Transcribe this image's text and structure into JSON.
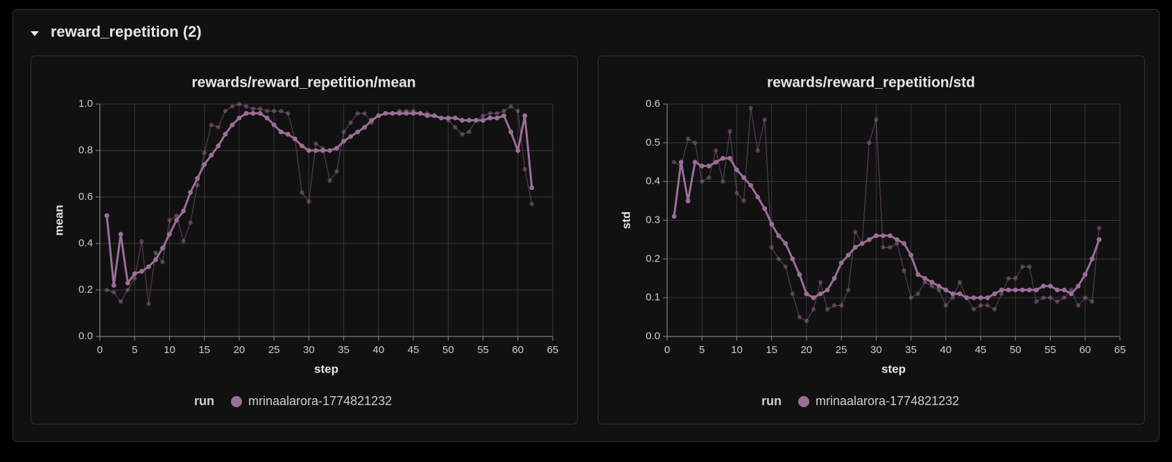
{
  "section": {
    "title": "reward_repetition (2)"
  },
  "chart_data": [
    {
      "type": "line",
      "title": "rewards/reward_repetition/mean",
      "xlabel": "step",
      "ylabel": "mean",
      "legend_title": "run",
      "grid": true,
      "xlim": [
        0,
        65
      ],
      "xticks": [
        0,
        5,
        10,
        15,
        20,
        25,
        30,
        35,
        40,
        45,
        50,
        55,
        60,
        65
      ],
      "ylim": [
        0,
        1
      ],
      "yticks": [
        {
          "value": 0,
          "label": "0.0"
        },
        0.2,
        0.4,
        0.6,
        0.8,
        {
          "value": 1,
          "label": "1.0"
        }
      ],
      "x": [
        1,
        2,
        3,
        4,
        5,
        6,
        7,
        8,
        9,
        10,
        11,
        12,
        13,
        14,
        15,
        16,
        17,
        18,
        19,
        20,
        21,
        22,
        23,
        24,
        25,
        26,
        27,
        28,
        29,
        30,
        31,
        32,
        33,
        34,
        35,
        36,
        37,
        38,
        39,
        40,
        41,
        42,
        43,
        44,
        45,
        46,
        47,
        48,
        49,
        50,
        51,
        52,
        53,
        54,
        55,
        56,
        57,
        58,
        59,
        60,
        61,
        62
      ],
      "series": [
        {
          "name": "mrinaalarora-1774821232",
          "color": "#9b6f98",
          "values": [
            0.2,
            0.19,
            0.15,
            0.2,
            0.25,
            0.41,
            0.14,
            0.36,
            0.32,
            0.5,
            0.52,
            0.41,
            0.49,
            0.65,
            0.79,
            0.91,
            0.9,
            0.97,
            0.99,
            1.0,
            0.99,
            0.98,
            0.98,
            0.97,
            0.97,
            0.97,
            0.96,
            0.85,
            0.62,
            0.58,
            0.83,
            0.81,
            0.67,
            0.71,
            0.88,
            0.92,
            0.96,
            0.96,
            0.92,
            0.95,
            0.96,
            0.96,
            0.97,
            0.97,
            0.97,
            0.96,
            0.96,
            0.95,
            0.94,
            0.93,
            0.9,
            0.87,
            0.88,
            0.93,
            0.95,
            0.96,
            0.96,
            0.97,
            0.99,
            0.97,
            0.72,
            0.57
          ],
          "smoothed_values": [
            0.52,
            0.22,
            0.44,
            0.23,
            0.27,
            0.28,
            0.3,
            0.33,
            0.38,
            0.44,
            0.5,
            0.54,
            0.62,
            0.68,
            0.74,
            0.78,
            0.82,
            0.87,
            0.91,
            0.94,
            0.96,
            0.96,
            0.96,
            0.94,
            0.91,
            0.88,
            0.87,
            0.85,
            0.82,
            0.8,
            0.8,
            0.8,
            0.8,
            0.81,
            0.84,
            0.86,
            0.88,
            0.9,
            0.93,
            0.95,
            0.96,
            0.96,
            0.96,
            0.96,
            0.96,
            0.96,
            0.95,
            0.95,
            0.94,
            0.94,
            0.94,
            0.93,
            0.93,
            0.93,
            0.93,
            0.94,
            0.94,
            0.95,
            0.88,
            0.8,
            0.95,
            0.64
          ]
        }
      ]
    },
    {
      "type": "line",
      "title": "rewards/reward_repetition/std",
      "xlabel": "step",
      "ylabel": "std",
      "legend_title": "run",
      "grid": true,
      "xlim": [
        0,
        65
      ],
      "xticks": [
        0,
        5,
        10,
        15,
        20,
        25,
        30,
        35,
        40,
        45,
        50,
        55,
        60,
        65
      ],
      "ylim": [
        0,
        0.6
      ],
      "yticks": [
        {
          "value": 0,
          "label": "0.0"
        },
        0.1,
        0.2,
        0.3,
        0.4,
        0.5,
        0.6
      ],
      "x": [
        1,
        2,
        3,
        4,
        5,
        6,
        7,
        8,
        9,
        10,
        11,
        12,
        13,
        14,
        15,
        16,
        17,
        18,
        19,
        20,
        21,
        22,
        23,
        24,
        25,
        26,
        27,
        28,
        29,
        30,
        31,
        32,
        33,
        34,
        35,
        36,
        37,
        38,
        39,
        40,
        41,
        42,
        43,
        44,
        45,
        46,
        47,
        48,
        49,
        50,
        51,
        52,
        53,
        54,
        55,
        56,
        57,
        58,
        59,
        60,
        61,
        62
      ],
      "series": [
        {
          "name": "mrinaalarora-1774821232",
          "color": "#9b6f98",
          "values": [
            0.45,
            0.44,
            0.51,
            0.5,
            0.4,
            0.41,
            0.48,
            0.4,
            0.53,
            0.37,
            0.35,
            0.59,
            0.48,
            0.56,
            0.23,
            0.2,
            0.18,
            0.11,
            0.05,
            0.04,
            0.07,
            0.14,
            0.07,
            0.08,
            0.08,
            0.12,
            0.27,
            0.24,
            0.5,
            0.56,
            0.23,
            0.23,
            0.24,
            0.17,
            0.1,
            0.11,
            0.14,
            0.13,
            0.12,
            0.08,
            0.1,
            0.14,
            0.1,
            0.07,
            0.08,
            0.08,
            0.07,
            0.11,
            0.15,
            0.15,
            0.18,
            0.18,
            0.09,
            0.1,
            0.1,
            0.09,
            0.1,
            0.12,
            0.08,
            0.1,
            0.09,
            0.28
          ],
          "smoothed_values": [
            0.31,
            0.45,
            0.35,
            0.45,
            0.44,
            0.44,
            0.45,
            0.46,
            0.46,
            0.43,
            0.41,
            0.39,
            0.36,
            0.33,
            0.29,
            0.26,
            0.24,
            0.2,
            0.16,
            0.11,
            0.1,
            0.11,
            0.12,
            0.15,
            0.19,
            0.21,
            0.23,
            0.24,
            0.25,
            0.26,
            0.26,
            0.26,
            0.25,
            0.24,
            0.21,
            0.16,
            0.15,
            0.14,
            0.13,
            0.12,
            0.11,
            0.11,
            0.1,
            0.1,
            0.1,
            0.1,
            0.11,
            0.12,
            0.12,
            0.12,
            0.12,
            0.12,
            0.12,
            0.13,
            0.13,
            0.12,
            0.12,
            0.11,
            0.13,
            0.16,
            0.2,
            0.25
          ]
        }
      ]
    }
  ]
}
